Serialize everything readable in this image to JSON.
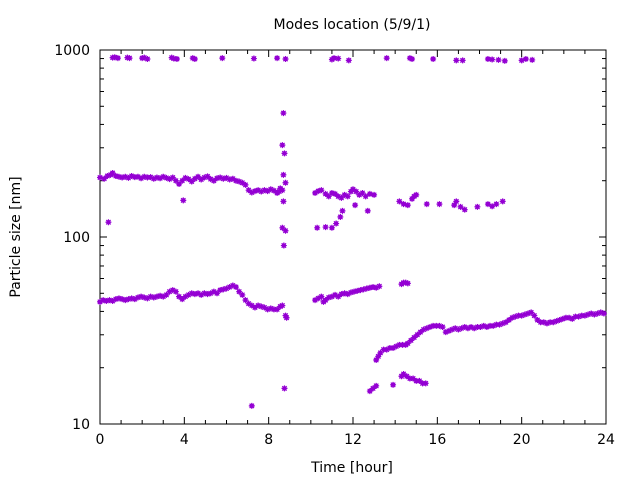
{
  "chart_data": {
    "type": "scatter",
    "title": "Modes location (5/9/1)",
    "xlabel": "Time [hour]",
    "ylabel": "Particle size [nm]",
    "xlim": [
      0,
      24
    ],
    "ylim": [
      10,
      1000
    ],
    "yscale": "log",
    "x_ticks": [
      0,
      4,
      8,
      12,
      16,
      20,
      24
    ],
    "y_ticks": [
      10,
      100,
      1000
    ],
    "grid": false,
    "legend": "none",
    "marker_color": "#9400D3",
    "series": [
      {
        "points": [
          [
            0.6,
            910
          ],
          [
            0.7,
            915
          ],
          [
            0.85,
            905
          ],
          [
            1.3,
            910
          ],
          [
            1.4,
            905
          ],
          [
            2.0,
            905
          ],
          [
            2.1,
            910
          ],
          [
            2.25,
            895
          ],
          [
            3.4,
            910
          ],
          [
            3.5,
            900
          ],
          [
            3.65,
            895
          ],
          [
            4.4,
            905
          ],
          [
            4.5,
            895
          ],
          [
            5.8,
            905
          ],
          [
            7.3,
            900
          ],
          [
            8.4,
            905
          ],
          [
            8.8,
            895
          ],
          [
            11.0,
            890
          ],
          [
            11.1,
            905
          ],
          [
            11.3,
            900
          ],
          [
            11.8,
            880
          ],
          [
            13.6,
            905
          ],
          [
            14.7,
            905
          ],
          [
            14.8,
            895
          ],
          [
            15.8,
            895
          ],
          [
            16.9,
            880
          ],
          [
            17.2,
            880
          ],
          [
            18.4,
            895
          ],
          [
            18.6,
            890
          ],
          [
            18.9,
            885
          ],
          [
            19.2,
            875
          ],
          [
            20.0,
            880
          ],
          [
            20.2,
            895
          ],
          [
            20.5,
            885
          ],
          [
            0.0,
            208
          ],
          [
            0.2,
            205
          ],
          [
            0.35,
            212
          ],
          [
            0.5,
            215
          ],
          [
            0.6,
            220
          ],
          [
            0.75,
            212
          ],
          [
            0.9,
            210
          ],
          [
            1.05,
            208
          ],
          [
            1.2,
            210
          ],
          [
            1.35,
            207
          ],
          [
            1.5,
            212
          ],
          [
            1.65,
            209
          ],
          [
            1.8,
            210
          ],
          [
            1.95,
            206
          ],
          [
            2.1,
            210
          ],
          [
            2.25,
            208
          ],
          [
            2.4,
            209
          ],
          [
            2.55,
            205
          ],
          [
            2.7,
            208
          ],
          [
            2.85,
            206
          ],
          [
            3.0,
            210
          ],
          [
            3.15,
            207
          ],
          [
            3.3,
            204
          ],
          [
            3.45,
            208
          ],
          [
            3.6,
            200
          ],
          [
            3.75,
            192
          ],
          [
            3.9,
            200
          ],
          [
            4.05,
            207
          ],
          [
            4.2,
            204
          ],
          [
            4.35,
            198
          ],
          [
            4.5,
            205
          ],
          [
            4.65,
            210
          ],
          [
            4.8,
            203
          ],
          [
            4.95,
            208
          ],
          [
            5.1,
            211
          ],
          [
            5.25,
            204
          ],
          [
            5.4,
            200
          ],
          [
            5.55,
            206
          ],
          [
            5.7,
            208
          ],
          [
            5.85,
            205
          ],
          [
            6.0,
            207
          ],
          [
            6.15,
            203
          ],
          [
            6.3,
            205
          ],
          [
            6.45,
            200
          ],
          [
            6.6,
            198
          ],
          [
            6.75,
            195
          ],
          [
            6.9,
            190
          ],
          [
            7.05,
            178
          ],
          [
            7.2,
            173
          ],
          [
            7.35,
            176
          ],
          [
            7.5,
            178
          ],
          [
            7.65,
            175
          ],
          [
            7.8,
            178
          ],
          [
            7.95,
            176
          ],
          [
            8.1,
            180
          ],
          [
            8.25,
            177
          ],
          [
            8.4,
            172
          ],
          [
            8.5,
            175
          ],
          [
            8.55,
            182
          ],
          [
            8.65,
            178
          ],
          [
            10.2,
            172
          ],
          [
            10.35,
            176
          ],
          [
            10.5,
            178
          ],
          [
            10.7,
            170
          ],
          [
            10.85,
            165
          ],
          [
            11.0,
            172
          ],
          [
            11.15,
            170
          ],
          [
            11.3,
            165
          ],
          [
            11.45,
            162
          ],
          [
            11.6,
            168
          ],
          [
            11.75,
            165
          ],
          [
            11.9,
            175
          ],
          [
            12.0,
            180
          ],
          [
            12.15,
            175
          ],
          [
            12.3,
            168
          ],
          [
            12.45,
            172
          ],
          [
            12.6,
            165
          ],
          [
            12.8,
            170
          ],
          [
            13.0,
            168
          ],
          [
            14.2,
            155
          ],
          [
            14.4,
            150
          ],
          [
            14.6,
            148
          ],
          [
            14.8,
            160
          ],
          [
            14.9,
            165
          ],
          [
            15.0,
            168
          ],
          [
            15.5,
            150
          ],
          [
            16.1,
            150
          ],
          [
            16.8,
            148
          ],
          [
            16.9,
            155
          ],
          [
            17.1,
            145
          ],
          [
            17.3,
            140
          ],
          [
            17.9,
            145
          ],
          [
            18.4,
            150
          ],
          [
            18.6,
            146
          ],
          [
            18.8,
            150
          ],
          [
            19.1,
            155
          ],
          [
            0.0,
            45
          ],
          [
            0.15,
            46
          ],
          [
            0.3,
            45.5
          ],
          [
            0.45,
            46
          ],
          [
            0.6,
            45.5
          ],
          [
            0.75,
            46.5
          ],
          [
            0.9,
            47
          ],
          [
            1.05,
            46.5
          ],
          [
            1.2,
            46
          ],
          [
            1.35,
            46.5
          ],
          [
            1.5,
            47
          ],
          [
            1.65,
            46.5
          ],
          [
            1.8,
            47.5
          ],
          [
            1.95,
            48
          ],
          [
            2.1,
            47.5
          ],
          [
            2.25,
            47
          ],
          [
            2.4,
            48
          ],
          [
            2.55,
            47.5
          ],
          [
            2.7,
            48
          ],
          [
            2.85,
            48.5
          ],
          [
            3.0,
            48
          ],
          [
            3.15,
            49
          ],
          [
            3.3,
            51
          ],
          [
            3.45,
            52
          ],
          [
            3.6,
            51
          ],
          [
            3.75,
            48
          ],
          [
            3.9,
            46.5
          ],
          [
            4.05,
            48
          ],
          [
            4.2,
            49
          ],
          [
            4.35,
            50
          ],
          [
            4.5,
            49.5
          ],
          [
            4.65,
            50
          ],
          [
            4.8,
            49
          ],
          [
            4.95,
            50
          ],
          [
            5.1,
            49.5
          ],
          [
            5.25,
            50
          ],
          [
            5.4,
            51
          ],
          [
            5.55,
            50
          ],
          [
            5.7,
            52
          ],
          [
            5.85,
            52.5
          ],
          [
            6.0,
            53
          ],
          [
            6.15,
            54
          ],
          [
            6.3,
            55
          ],
          [
            6.45,
            54
          ],
          [
            6.6,
            51
          ],
          [
            6.75,
            49
          ],
          [
            6.9,
            46
          ],
          [
            7.05,
            44
          ],
          [
            7.2,
            43
          ],
          [
            7.35,
            42
          ],
          [
            7.5,
            43
          ],
          [
            7.65,
            42.5
          ],
          [
            7.8,
            42
          ],
          [
            7.95,
            41
          ],
          [
            8.1,
            41.5
          ],
          [
            8.25,
            41
          ],
          [
            8.4,
            41
          ],
          [
            8.55,
            42.5
          ],
          [
            8.65,
            43
          ],
          [
            8.8,
            38
          ],
          [
            8.85,
            37
          ],
          [
            10.2,
            46
          ],
          [
            10.35,
            47
          ],
          [
            10.5,
            48
          ],
          [
            10.6,
            45
          ],
          [
            10.7,
            46
          ],
          [
            10.85,
            47.5
          ],
          [
            11.0,
            48
          ],
          [
            11.15,
            49
          ],
          [
            11.3,
            48
          ],
          [
            11.45,
            49.5
          ],
          [
            11.6,
            50
          ],
          [
            11.75,
            49.5
          ],
          [
            11.9,
            50.5
          ],
          [
            12.05,
            51
          ],
          [
            12.2,
            51.5
          ],
          [
            12.35,
            52
          ],
          [
            12.5,
            52.5
          ],
          [
            12.65,
            53
          ],
          [
            12.8,
            53.5
          ],
          [
            12.95,
            54
          ],
          [
            13.1,
            53.5
          ],
          [
            13.25,
            54.5
          ],
          [
            13.1,
            22
          ],
          [
            13.2,
            23
          ],
          [
            13.3,
            24
          ],
          [
            13.45,
            25
          ],
          [
            13.6,
            25
          ],
          [
            13.75,
            25.5
          ],
          [
            13.9,
            25.5
          ],
          [
            14.05,
            26
          ],
          [
            14.2,
            26.5
          ],
          [
            14.35,
            26.5
          ],
          [
            14.5,
            26.5
          ],
          [
            14.6,
            27
          ],
          [
            14.75,
            28
          ],
          [
            14.9,
            29
          ],
          [
            15.05,
            30
          ],
          [
            15.2,
            31
          ],
          [
            15.35,
            32
          ],
          [
            15.5,
            32.5
          ],
          [
            15.65,
            33
          ],
          [
            15.8,
            33.5
          ],
          [
            15.95,
            33.5
          ],
          [
            16.1,
            33.5
          ],
          [
            16.25,
            33
          ],
          [
            16.4,
            31
          ],
          [
            16.55,
            31.5
          ],
          [
            16.7,
            32
          ],
          [
            16.85,
            32.5
          ],
          [
            17.0,
            32
          ],
          [
            17.15,
            32.5
          ],
          [
            17.3,
            33
          ],
          [
            17.45,
            32.5
          ],
          [
            17.6,
            33
          ],
          [
            17.75,
            32.5
          ],
          [
            17.9,
            33
          ],
          [
            18.05,
            33
          ],
          [
            18.2,
            33.5
          ],
          [
            18.35,
            33
          ],
          [
            18.5,
            33.5
          ],
          [
            18.65,
            33.5
          ],
          [
            18.8,
            34
          ],
          [
            18.95,
            34
          ],
          [
            19.1,
            34.5
          ],
          [
            19.25,
            35
          ],
          [
            19.4,
            36
          ],
          [
            19.55,
            37
          ],
          [
            19.7,
            37.5
          ],
          [
            19.85,
            38
          ],
          [
            20.0,
            38
          ],
          [
            20.15,
            38.5
          ],
          [
            20.3,
            39
          ],
          [
            20.45,
            39.5
          ],
          [
            20.6,
            38
          ],
          [
            20.75,
            36
          ],
          [
            20.9,
            35
          ],
          [
            21.05,
            35
          ],
          [
            21.2,
            34.5
          ],
          [
            21.35,
            35
          ],
          [
            21.5,
            35
          ],
          [
            21.65,
            35.5
          ],
          [
            21.8,
            36
          ],
          [
            21.95,
            36.5
          ],
          [
            22.1,
            37
          ],
          [
            22.25,
            37
          ],
          [
            22.4,
            36.5
          ],
          [
            22.55,
            37.5
          ],
          [
            22.7,
            37.5
          ],
          [
            22.85,
            38
          ],
          [
            23.0,
            38
          ],
          [
            23.15,
            38.5
          ],
          [
            23.3,
            39
          ],
          [
            23.45,
            38.5
          ],
          [
            23.6,
            39
          ],
          [
            23.75,
            39.5
          ],
          [
            23.9,
            39
          ],
          [
            14.3,
            56
          ],
          [
            14.4,
            57
          ],
          [
            14.5,
            57
          ],
          [
            14.6,
            56.5
          ],
          [
            14.3,
            18
          ],
          [
            14.4,
            18.5
          ],
          [
            14.55,
            18
          ],
          [
            14.7,
            17.5
          ],
          [
            14.85,
            17.5
          ],
          [
            15.0,
            17
          ],
          [
            15.15,
            17
          ],
          [
            15.3,
            16.5
          ],
          [
            15.45,
            16.5
          ],
          [
            12.8,
            15
          ],
          [
            12.95,
            15.5
          ],
          [
            13.1,
            16
          ],
          [
            13.9,
            16.2
          ],
          [
            0.4,
            120
          ],
          [
            3.95,
            157
          ],
          [
            7.2,
            12.5
          ],
          [
            8.7,
            460
          ],
          [
            8.65,
            310
          ],
          [
            8.75,
            280
          ],
          [
            8.7,
            215
          ],
          [
            8.8,
            195
          ],
          [
            8.7,
            155
          ],
          [
            8.65,
            112
          ],
          [
            8.8,
            108
          ],
          [
            8.72,
            90
          ],
          [
            8.75,
            15.5
          ],
          [
            10.3,
            112
          ],
          [
            10.7,
            113
          ],
          [
            11.0,
            112
          ],
          [
            11.2,
            118
          ],
          [
            11.4,
            128
          ],
          [
            11.5,
            138
          ],
          [
            12.1,
            148
          ],
          [
            12.7,
            138
          ]
        ]
      }
    ]
  }
}
